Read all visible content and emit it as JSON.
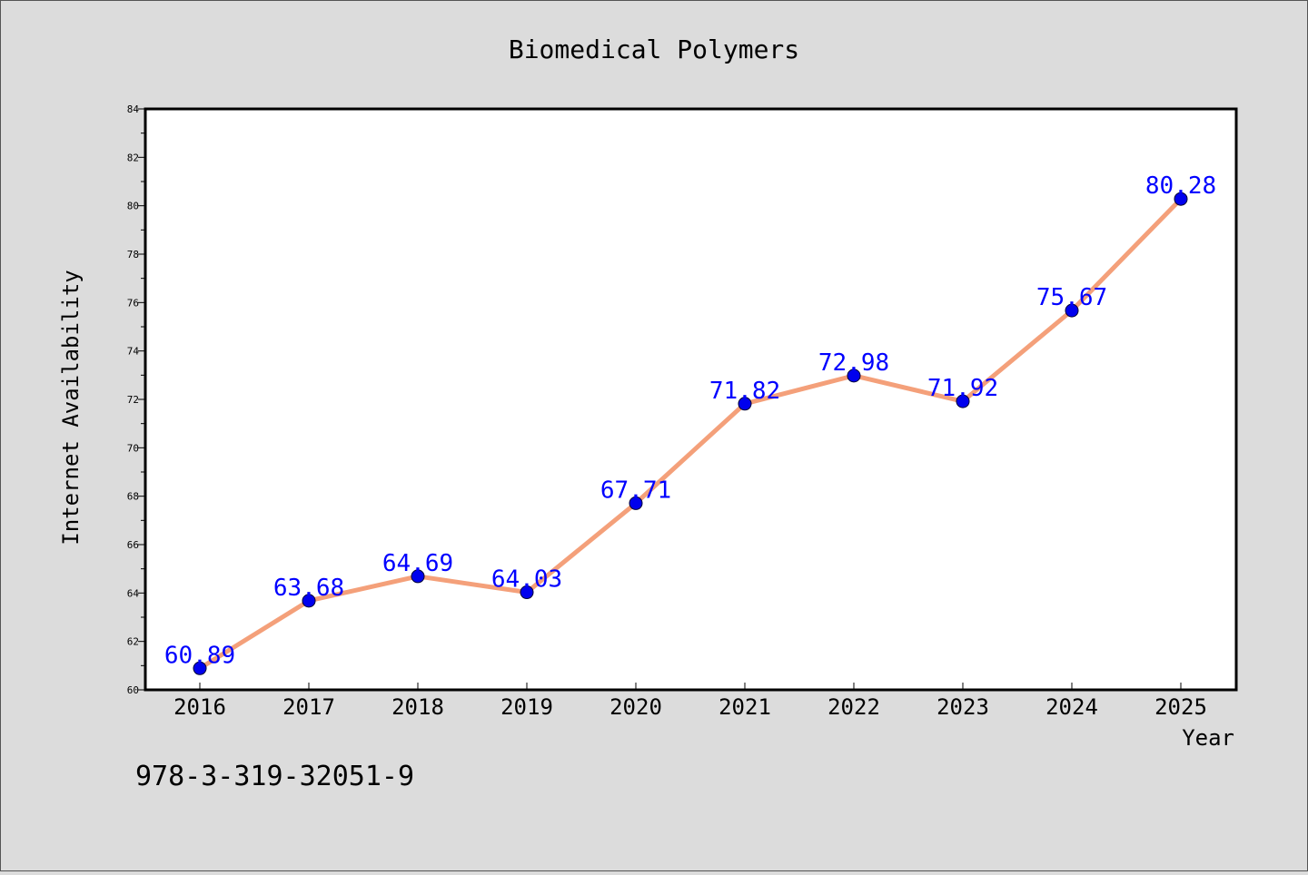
{
  "chart_data": {
    "type": "line",
    "title": "Biomedical Polymers",
    "xlabel": "Year",
    "ylabel": "Internet Availability",
    "categories": [
      "2016",
      "2017",
      "2018",
      "2019",
      "2020",
      "2021",
      "2022",
      "2023",
      "2024",
      "2025"
    ],
    "series": [
      {
        "values": [
          60.89,
          63.68,
          64.69,
          64.03,
          67.71,
          71.82,
          72.98,
          71.92,
          75.67,
          80.28
        ],
        "labels": [
          "60.89",
          "63.68",
          "64.69",
          "64.03",
          "67.71",
          "71.82",
          "72.98",
          "71.92",
          "75.67",
          "80.28"
        ]
      }
    ],
    "ylim": [
      60,
      84
    ],
    "yticks": [
      60,
      62,
      64,
      66,
      68,
      70,
      72,
      74,
      76,
      78,
      80,
      82,
      84
    ],
    "grid": false,
    "legend": "none",
    "colors": {
      "line": "#f4a07a",
      "marker": "#0000ee",
      "label": "#0000ff",
      "background": "#dcdcdc",
      "plot_background": "#ffffff"
    }
  },
  "footnote": "978-3-319-32051-9"
}
